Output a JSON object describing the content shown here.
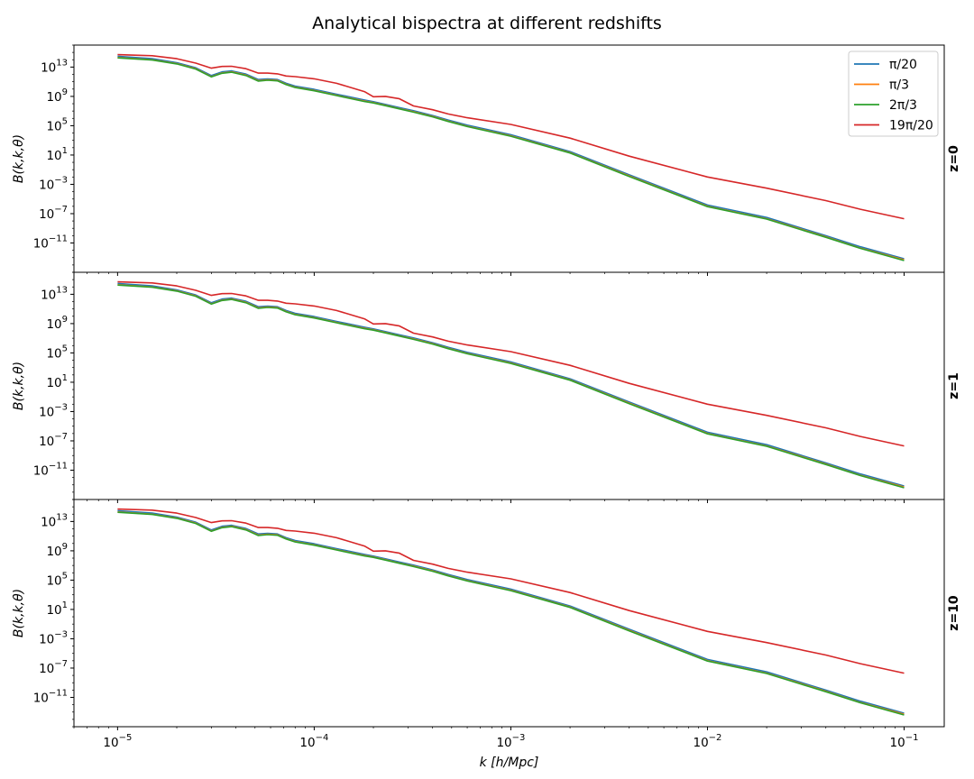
{
  "figure": {
    "title": "Analytical bispectra at different redshifts"
  },
  "chart_data": [
    {
      "type": "line",
      "panel_label": "z=0",
      "xlabel": "k [h/Mpc]",
      "ylabel": "B(k,k,θ)",
      "x_scale": "log",
      "y_scale": "log",
      "xlim": [
        6e-06,
        0.16
      ],
      "ylim": [
        1e-15,
        1e+16
      ],
      "x": [
        1e-05,
        1.5e-05,
        2e-05,
        2.5e-05,
        3e-05,
        3.4e-05,
        3.8e-05,
        4.5e-05,
        5.2e-05,
        5.8e-05,
        6.5e-05,
        7.2e-05,
        8e-05,
        0.0001,
        0.00013,
        0.00018,
        0.0002,
        0.00023,
        0.00027,
        0.00032,
        0.0004,
        0.00048,
        0.0006,
        0.001,
        0.002,
        0.004,
        0.01,
        0.02,
        0.04,
        0.06,
        0.1
      ],
      "series": [
        {
          "name": "π/20",
          "color": "#1f77b4",
          "values": [
            300000000000000.0,
            140000000000000.0,
            40000000000000.0,
            8000000000000.0,
            700000000000.0,
            2200000000000.0,
            3000000000000.0,
            1100000000000.0,
            200000000000.0,
            240000000000.0,
            200000000000.0,
            60000000000.0,
            25000000000.0,
            9000000000.0,
            2000000000.0,
            320000000.0,
            190000000.0,
            80000000.0,
            30000000.0,
            11000000.0,
            2500000.0,
            600000.0,
            120000.0,
            6000.0,
            30,
            0.02,
            1.5e-06,
            3e-08,
            1e-10,
            3e-12,
            7e-14
          ]
        },
        {
          "name": "π/3",
          "color": "#ff7f0e",
          "values": [
            200000000000000.0,
            100000000000000.0,
            30000000000000.0,
            6000000000000.0,
            500000000000.0,
            1600000000000.0,
            2200000000000.0,
            800000000000.0,
            140000000000.0,
            180000000000.0,
            150000000000.0,
            45000000000.0,
            18000000000.0,
            6500000000.0,
            1400000000.0,
            230000000.0,
            140000000.0,
            60000000.0,
            22000000.0,
            8000000.0,
            1800000.0,
            430000.0,
            85000.0,
            4200.0,
            21,
            0.014,
            1e-06,
            2e-08,
            7e-11,
            2e-12,
            5e-14
          ]
        },
        {
          "name": "2π/3",
          "color": "#2ca02c",
          "values": [
            180000000000000.0,
            90000000000000.0,
            27000000000000.0,
            5400000000000.0,
            450000000000.0,
            1400000000000.0,
            2000000000000.0,
            700000000000.0,
            120000000000.0,
            160000000000.0,
            130000000000.0,
            40000000000.0,
            16000000000.0,
            5800000000.0,
            1300000000.0,
            200000000.0,
            125000000.0,
            54000000.0,
            20000000.0,
            7000000.0,
            1600000.0,
            380000.0,
            76000.0,
            3700.0,
            19,
            0.012,
            9e-07,
            1.8e-08,
            6e-11,
            1.8e-12,
            4e-14
          ]
        },
        {
          "name": "19π/20",
          "color": "#d62728",
          "values": [
            500000000000000.0,
            350000000000000.0,
            140000000000000.0,
            35000000000000.0,
            7000000000000.0,
            12000000000000.0,
            13000000000000.0,
            6000000000000.0,
            1500000000000.0,
            1500000000000.0,
            1200000000000.0,
            600000000000.0,
            500000000000.0,
            250000000000.0,
            60000000000.0,
            4500000000.0,
            900000000.0,
            1000000000.0,
            500000000.0,
            50000000.0,
            15000000.0,
            4000000.0,
            1200000.0,
            150000.0,
            2000.0,
            7,
            0.01,
            0.0003,
            6e-06,
            4e-07,
            2e-08
          ]
        }
      ]
    },
    {
      "type": "line",
      "panel_label": "z=1",
      "xlabel": "k [h/Mpc]",
      "ylabel": "B(k,k,θ)",
      "x_scale": "log",
      "y_scale": "log",
      "xlim": [
        6e-06,
        0.16
      ],
      "ylim": [
        1e-15,
        1e+16
      ],
      "x": [
        1e-05,
        1.5e-05,
        2e-05,
        2.5e-05,
        3e-05,
        3.4e-05,
        3.8e-05,
        4.5e-05,
        5.2e-05,
        5.8e-05,
        6.5e-05,
        7.2e-05,
        8e-05,
        0.0001,
        0.00013,
        0.00018,
        0.0002,
        0.00023,
        0.00027,
        0.00032,
        0.0004,
        0.00048,
        0.0006,
        0.001,
        0.002,
        0.004,
        0.01,
        0.02,
        0.04,
        0.06,
        0.1
      ],
      "series": [
        {
          "name": "π/20",
          "color": "#1f77b4",
          "values": [
            300000000000000.0,
            140000000000000.0,
            40000000000000.0,
            8000000000000.0,
            700000000000.0,
            2200000000000.0,
            3000000000000.0,
            1100000000000.0,
            200000000000.0,
            240000000000.0,
            200000000000.0,
            60000000000.0,
            25000000000.0,
            9000000000.0,
            2000000000.0,
            320000000.0,
            190000000.0,
            80000000.0,
            30000000.0,
            11000000.0,
            2500000.0,
            600000.0,
            120000.0,
            6000.0,
            30,
            0.02,
            1.5e-06,
            3e-08,
            1e-10,
            3e-12,
            7e-14
          ]
        },
        {
          "name": "π/3",
          "color": "#ff7f0e",
          "values": [
            200000000000000.0,
            100000000000000.0,
            30000000000000.0,
            6000000000000.0,
            500000000000.0,
            1600000000000.0,
            2200000000000.0,
            800000000000.0,
            140000000000.0,
            180000000000.0,
            150000000000.0,
            45000000000.0,
            18000000000.0,
            6500000000.0,
            1400000000.0,
            230000000.0,
            140000000.0,
            60000000.0,
            22000000.0,
            8000000.0,
            1800000.0,
            430000.0,
            85000.0,
            4200.0,
            21,
            0.014,
            1e-06,
            2e-08,
            7e-11,
            2e-12,
            5e-14
          ]
        },
        {
          "name": "2π/3",
          "color": "#2ca02c",
          "values": [
            180000000000000.0,
            90000000000000.0,
            27000000000000.0,
            5400000000000.0,
            450000000000.0,
            1400000000000.0,
            2000000000000.0,
            700000000000.0,
            120000000000.0,
            160000000000.0,
            130000000000.0,
            40000000000.0,
            16000000000.0,
            5800000000.0,
            1300000000.0,
            200000000.0,
            125000000.0,
            54000000.0,
            20000000.0,
            7000000.0,
            1600000.0,
            380000.0,
            76000.0,
            3700.0,
            19,
            0.012,
            9e-07,
            1.8e-08,
            6e-11,
            1.8e-12,
            4e-14
          ]
        },
        {
          "name": "19π/20",
          "color": "#d62728",
          "values": [
            500000000000000.0,
            350000000000000.0,
            140000000000000.0,
            35000000000000.0,
            7000000000000.0,
            12000000000000.0,
            13000000000000.0,
            6000000000000.0,
            1500000000000.0,
            1500000000000.0,
            1200000000000.0,
            600000000000.0,
            500000000000.0,
            250000000000.0,
            60000000000.0,
            4500000000.0,
            900000000.0,
            1000000000.0,
            500000000.0,
            50000000.0,
            15000000.0,
            4000000.0,
            1200000.0,
            150000.0,
            2000.0,
            7,
            0.01,
            0.0003,
            6e-06,
            4e-07,
            2e-08
          ]
        }
      ]
    },
    {
      "type": "line",
      "panel_label": "z=10",
      "xlabel": "k [h/Mpc]",
      "ylabel": "B(k,k,θ)",
      "x_scale": "log",
      "y_scale": "log",
      "xlim": [
        6e-06,
        0.16
      ],
      "ylim": [
        1e-15,
        1e+16
      ],
      "x": [
        1e-05,
        1.5e-05,
        2e-05,
        2.5e-05,
        3e-05,
        3.4e-05,
        3.8e-05,
        4.5e-05,
        5.2e-05,
        5.8e-05,
        6.5e-05,
        7.2e-05,
        8e-05,
        0.0001,
        0.00013,
        0.00018,
        0.0002,
        0.00023,
        0.00027,
        0.00032,
        0.0004,
        0.00048,
        0.0006,
        0.001,
        0.002,
        0.004,
        0.01,
        0.02,
        0.04,
        0.06,
        0.1
      ],
      "series": [
        {
          "name": "π/20",
          "color": "#1f77b4",
          "values": [
            300000000000000.0,
            140000000000000.0,
            40000000000000.0,
            8000000000000.0,
            700000000000.0,
            2200000000000.0,
            3000000000000.0,
            1100000000000.0,
            200000000000.0,
            240000000000.0,
            200000000000.0,
            60000000000.0,
            25000000000.0,
            9000000000.0,
            2000000000.0,
            320000000.0,
            190000000.0,
            80000000.0,
            30000000.0,
            11000000.0,
            2500000.0,
            600000.0,
            120000.0,
            6000.0,
            30,
            0.02,
            1.5e-06,
            3e-08,
            1e-10,
            3e-12,
            7e-14
          ]
        },
        {
          "name": "π/3",
          "color": "#ff7f0e",
          "values": [
            200000000000000.0,
            100000000000000.0,
            30000000000000.0,
            6000000000000.0,
            500000000000.0,
            1600000000000.0,
            2200000000000.0,
            800000000000.0,
            140000000000.0,
            180000000000.0,
            150000000000.0,
            45000000000.0,
            18000000000.0,
            6500000000.0,
            1400000000.0,
            230000000.0,
            140000000.0,
            60000000.0,
            22000000.0,
            8000000.0,
            1800000.0,
            430000.0,
            85000.0,
            4200.0,
            21,
            0.014,
            1e-06,
            2e-08,
            7e-11,
            2e-12,
            5e-14
          ]
        },
        {
          "name": "2π/3",
          "color": "#2ca02c",
          "values": [
            180000000000000.0,
            90000000000000.0,
            27000000000000.0,
            5400000000000.0,
            450000000000.0,
            1400000000000.0,
            2000000000000.0,
            700000000000.0,
            120000000000.0,
            160000000000.0,
            130000000000.0,
            40000000000.0,
            16000000000.0,
            5800000000.0,
            1300000000.0,
            200000000.0,
            125000000.0,
            54000000.0,
            20000000.0,
            7000000.0,
            1600000.0,
            380000.0,
            76000.0,
            3700.0,
            19,
            0.012,
            9e-07,
            1.8e-08,
            6e-11,
            1.8e-12,
            4e-14
          ]
        },
        {
          "name": "19π/20",
          "color": "#d62728",
          "values": [
            500000000000000.0,
            350000000000000.0,
            140000000000000.0,
            35000000000000.0,
            7000000000000.0,
            12000000000000.0,
            13000000000000.0,
            6000000000000.0,
            1500000000000.0,
            1500000000000.0,
            1200000000000.0,
            600000000000.0,
            500000000000.0,
            250000000000.0,
            60000000000.0,
            4500000000.0,
            900000000.0,
            1000000000.0,
            500000000.0,
            50000000.0,
            15000000.0,
            4000000.0,
            1200000.0,
            150000.0,
            2000.0,
            7,
            0.01,
            0.0003,
            6e-06,
            4e-07,
            2e-08
          ]
        }
      ]
    }
  ],
  "x_ticks": [
    {
      "base": "10",
      "exp": "−5",
      "value": 1e-05
    },
    {
      "base": "10",
      "exp": "−4",
      "value": 0.0001
    },
    {
      "base": "10",
      "exp": "−3",
      "value": 0.001
    },
    {
      "base": "10",
      "exp": "−2",
      "value": 0.01
    },
    {
      "base": "10",
      "exp": "−1",
      "value": 0.1
    }
  ],
  "y_ticks": [
    {
      "base": "10",
      "exp": "13",
      "value": 10000000000000.0
    },
    {
      "base": "10",
      "exp": "9",
      "value": 1000000000.0
    },
    {
      "base": "10",
      "exp": "5",
      "value": 100000.0
    },
    {
      "base": "10",
      "exp": "1",
      "value": 10.0
    },
    {
      "base": "10",
      "exp": "−3",
      "value": 0.001
    },
    {
      "base": "10",
      "exp": "−7",
      "value": 1e-07
    },
    {
      "base": "10",
      "exp": "−11",
      "value": 1e-11
    }
  ],
  "legend": {
    "placement": "top-right",
    "entries": [
      "π/20",
      "π/3",
      "2π/3",
      "19π/20"
    ]
  }
}
